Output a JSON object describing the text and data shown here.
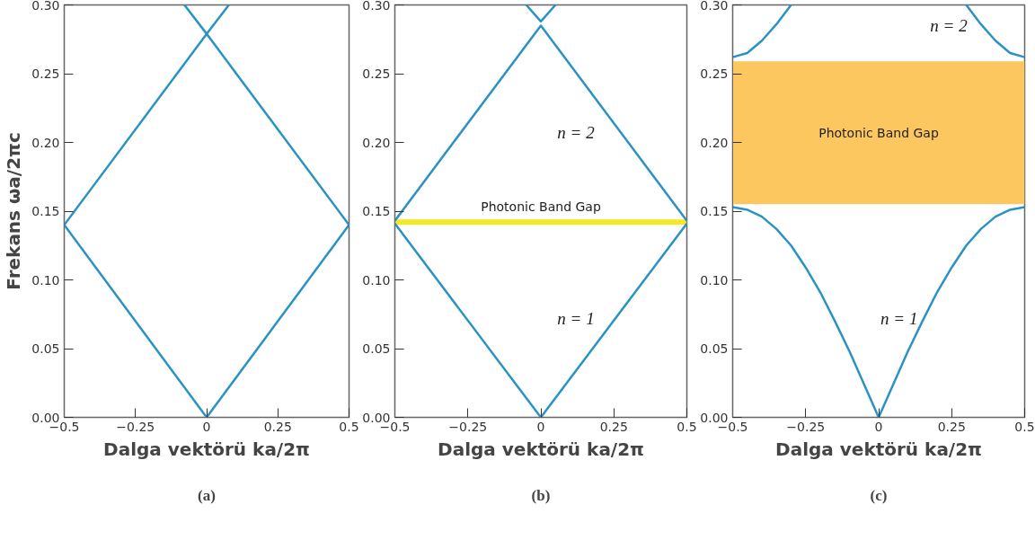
{
  "chart_data": [
    {
      "type": "line",
      "title": "(a)",
      "xlabel": "Dalga vektörü ka/2π",
      "ylabel": "Frekans ωa/2πc",
      "xlim": [
        -0.5,
        0.5
      ],
      "ylim": [
        0,
        0.3
      ],
      "xticks": [
        -0.5,
        -0.25,
        0,
        0.25,
        0.5
      ],
      "yticks": [
        {
          "value": 0,
          "label": "0.00"
        },
        {
          "value": 0.05,
          "label": "0.05"
        },
        {
          "value": 0.1,
          "label": "0.10"
        },
        {
          "value": 0.15,
          "label": "0.15"
        },
        {
          "value": 0.2,
          "label": "0.20"
        },
        {
          "value": 0.25,
          "label": "0.25"
        },
        {
          "value": 0.3,
          "label": "0.30"
        }
      ],
      "grid": false,
      "series": [
        {
          "color": "#2b93c4",
          "x": [
            -0.5,
            0,
            0.5
          ],
          "values": [
            0.14,
            0,
            0.14
          ]
        },
        {
          "color": "#2b93c4",
          "x": [
            -0.5,
            0,
            0.078
          ],
          "values": [
            0.14,
            0.279,
            0.3
          ]
        },
        {
          "color": "#2b93c4",
          "x": [
            -0.078,
            0,
            0.5
          ],
          "values": [
            0.3,
            0.279,
            0.14
          ]
        }
      ]
    },
    {
      "type": "line",
      "title": "(b)",
      "xlabel": "Dalga vektörü ka/2π",
      "xlim": [
        -0.5,
        0.5
      ],
      "ylim": [
        0,
        0.3
      ],
      "xticks": [
        -0.5,
        -0.25,
        0,
        0.25,
        0.5
      ],
      "yticks": [
        {
          "value": 0,
          "label": "0.00"
        },
        {
          "value": 0.05,
          "label": "0.05"
        },
        {
          "value": 0.1,
          "label": "0.10"
        },
        {
          "value": 0.15,
          "label": "0.15"
        },
        {
          "value": 0.2,
          "label": "0.20"
        },
        {
          "value": 0.25,
          "label": "0.25"
        },
        {
          "value": 0.3,
          "label": "0.30"
        }
      ],
      "grid": false,
      "bands": [
        {
          "axis": "y",
          "from": 0.14,
          "to": 0.144,
          "label": "Photonic Band Gap",
          "color": "#f2e826"
        }
      ],
      "annotations": [
        "n = 2",
        "n = 1"
      ],
      "series": [
        {
          "color": "#2b93c4",
          "x": [
            -0.5,
            0,
            0.5
          ],
          "values": [
            0.141,
            0,
            0.141
          ]
        },
        {
          "color": "#2b93c4",
          "x": [
            -0.5,
            0,
            0.5
          ],
          "values": [
            0.143,
            0.285,
            0.143
          ]
        },
        {
          "color": "#2b93c4",
          "x": [
            -0.05,
            0,
            0.05
          ],
          "values": [
            0.3,
            0.288,
            0.3
          ]
        }
      ]
    },
    {
      "type": "line",
      "title": "(c)",
      "xlabel": "Dalga vektörü ka/2π",
      "xlim": [
        -0.5,
        0.5
      ],
      "ylim": [
        0,
        0.3
      ],
      "xticks": [
        -0.5,
        -0.25,
        0,
        0.25,
        0.5
      ],
      "yticks": [
        {
          "value": 0,
          "label": "0.00"
        },
        {
          "value": 0.05,
          "label": "0.05"
        },
        {
          "value": 0.1,
          "label": "0.10"
        },
        {
          "value": 0.15,
          "label": "0.15"
        },
        {
          "value": 0.2,
          "label": "0.20"
        },
        {
          "value": 0.25,
          "label": "0.25"
        },
        {
          "value": 0.3,
          "label": "0.30"
        }
      ],
      "grid": false,
      "bands": [
        {
          "axis": "y",
          "from": 0.155,
          "to": 0.259,
          "label": "Photonic Band Gap",
          "color": "#fcc75e"
        }
      ],
      "annotations": [
        "n = 2",
        "n = 1"
      ],
      "series": [
        {
          "color": "#2b93c4",
          "x": [
            -0.5,
            -0.45,
            -0.4,
            -0.35,
            -0.3,
            -0.25,
            -0.2,
            -0.15,
            -0.1,
            -0.05,
            0,
            0.05,
            0.1,
            0.15,
            0.2,
            0.25,
            0.3,
            0.35,
            0.4,
            0.45,
            0.5
          ],
          "values": [
            0.153,
            0.151,
            0.146,
            0.137,
            0.125,
            0.109,
            0.091,
            0.07,
            0.048,
            0.024,
            0,
            0.024,
            0.048,
            0.07,
            0.091,
            0.109,
            0.125,
            0.137,
            0.146,
            0.151,
            0.153
          ]
        },
        {
          "color": "#2b93c4",
          "x": [
            -0.5,
            -0.45,
            -0.4,
            -0.35,
            -0.3
          ],
          "values": [
            0.262,
            0.265,
            0.274,
            0.286,
            0.3
          ]
        },
        {
          "color": "#2b93c4",
          "x": [
            0.3,
            0.35,
            0.4,
            0.45,
            0.5
          ],
          "values": [
            0.3,
            0.286,
            0.274,
            0.265,
            0.262
          ]
        }
      ]
    }
  ]
}
